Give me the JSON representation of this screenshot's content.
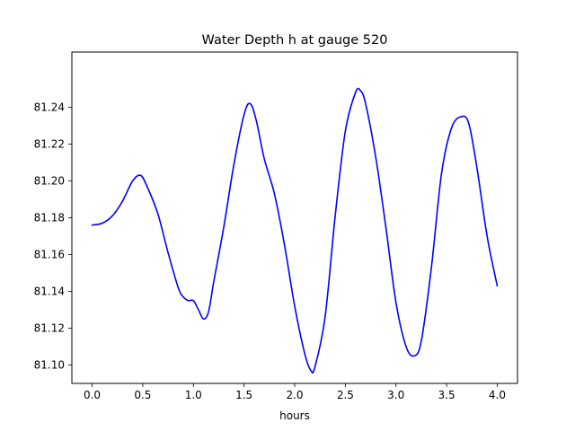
{
  "chart_data": {
    "type": "line",
    "title": "Water Depth h at gauge 520",
    "xlabel": "hours",
    "ylabel": "",
    "xlim": [
      -0.2,
      4.2
    ],
    "ylim": [
      81.09,
      81.27
    ],
    "xticks": [
      "0.0",
      "0.5",
      "1.0",
      "1.5",
      "2.0",
      "2.5",
      "3.0",
      "3.5",
      "4.0"
    ],
    "yticks": [
      "81.10",
      "81.12",
      "81.14",
      "81.16",
      "81.18",
      "81.20",
      "81.22",
      "81.24"
    ],
    "grid": false,
    "line_color": "#0000ff",
    "series": [
      {
        "x": [
          0.0,
          0.1,
          0.2,
          0.3,
          0.4,
          0.48,
          0.55,
          0.65,
          0.75,
          0.85,
          0.9,
          0.95,
          1.0,
          1.05,
          1.1,
          1.15,
          1.2,
          1.3,
          1.4,
          1.5,
          1.56,
          1.62,
          1.7,
          1.8,
          1.9,
          2.0,
          2.1,
          2.16,
          2.2,
          2.3,
          2.4,
          2.5,
          2.6,
          2.65,
          2.7,
          2.8,
          2.9,
          3.0,
          3.1,
          3.18,
          3.25,
          3.35,
          3.45,
          3.55,
          3.65,
          3.72,
          3.8,
          3.9,
          4.0
        ],
        "y": [
          81.176,
          81.177,
          81.181,
          81.189,
          81.2,
          81.203,
          81.196,
          81.182,
          81.161,
          81.142,
          81.137,
          81.135,
          81.135,
          81.13,
          81.125,
          81.129,
          81.145,
          81.175,
          81.209,
          81.236,
          81.242,
          81.233,
          81.212,
          81.193,
          81.165,
          81.132,
          81.106,
          81.097,
          81.099,
          81.126,
          81.181,
          81.227,
          81.248,
          81.249,
          81.242,
          81.213,
          81.175,
          81.134,
          81.11,
          81.105,
          81.113,
          81.153,
          81.204,
          81.229,
          81.235,
          81.231,
          81.207,
          81.17,
          81.143
        ]
      }
    ]
  }
}
